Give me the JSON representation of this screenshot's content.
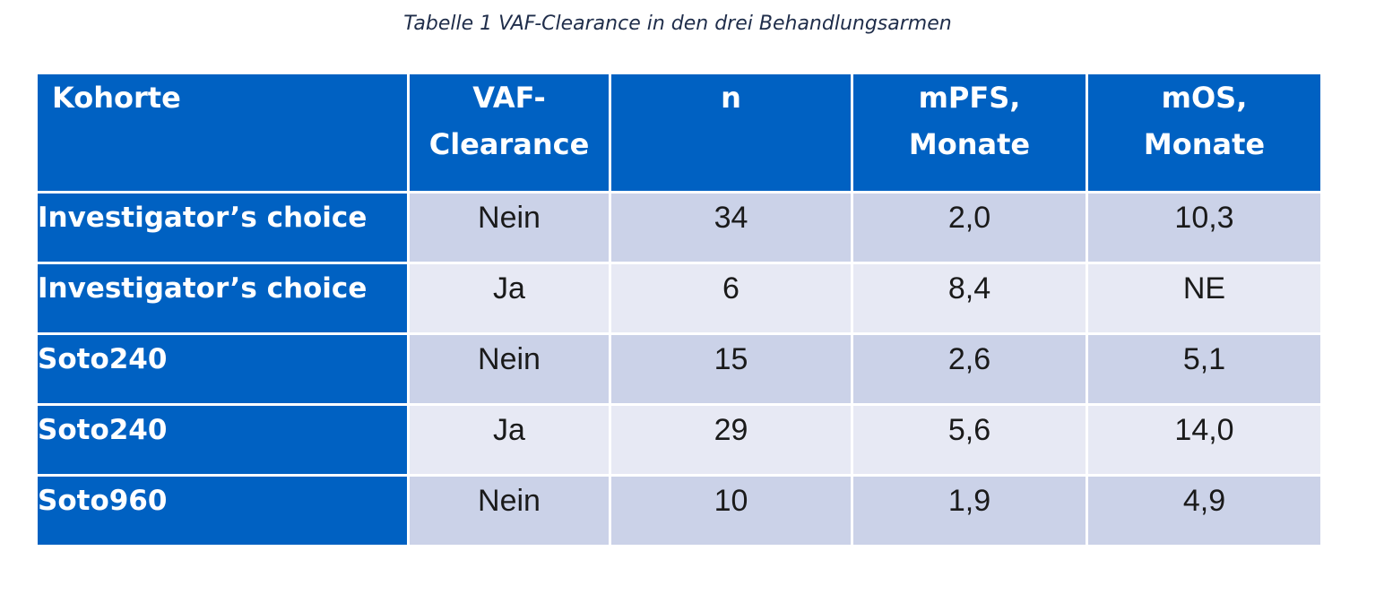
{
  "caption": "Tabelle 1 VAF-Clearance in den drei Behandlungsarmen",
  "table": {
    "headers": [
      {
        "lines": [
          "Kohorte"
        ]
      },
      {
        "lines": [
          "VAF-",
          "Clearance"
        ]
      },
      {
        "lines": [
          "n"
        ]
      },
      {
        "lines": [
          "mPFS,",
          "Monate"
        ]
      },
      {
        "lines": [
          "mOS,",
          "Monate"
        ]
      }
    ],
    "rows": [
      {
        "cohort": "Investigator’s choice",
        "vaf_clearance": "Nein",
        "n": "34",
        "mpfs": "2,0",
        "mos": "10,3"
      },
      {
        "cohort": "Investigator’s choice",
        "vaf_clearance": "Ja",
        "n": "6",
        "mpfs": "8,4",
        "mos": "NE"
      },
      {
        "cohort": "Soto240",
        "vaf_clearance": "Nein",
        "n": "15",
        "mpfs": "2,6",
        "mos": "5,1"
      },
      {
        "cohort": "Soto240",
        "vaf_clearance": "Ja",
        "n": "29",
        "mpfs": "5,6",
        "mos": "14,0"
      },
      {
        "cohort": "Soto960",
        "vaf_clearance": "Nein",
        "n": "10",
        "mpfs": "1,9",
        "mos": "4,9"
      }
    ]
  },
  "colors": {
    "header_bg": "#0061c2",
    "row_odd_bg": "#cbd2e8",
    "row_even_bg": "#e7e9f4",
    "caption_color": "#1f2d4a"
  }
}
